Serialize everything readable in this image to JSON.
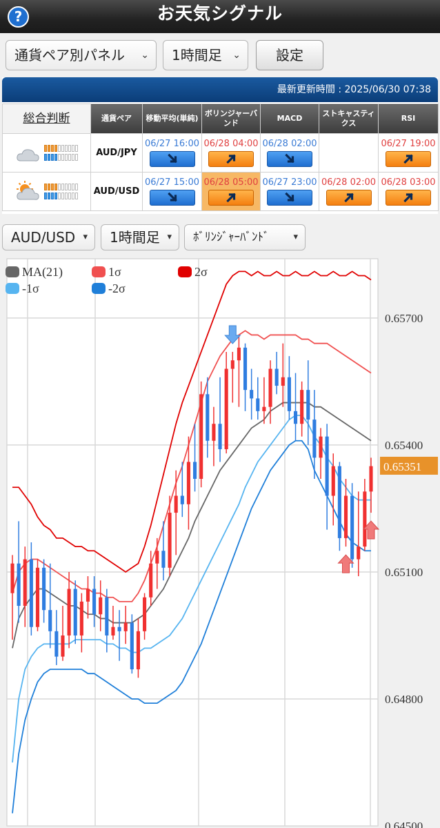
{
  "app": {
    "title": "お天気シグナル",
    "help_icon": "question-icon"
  },
  "controls": {
    "panel_select": "通貨ペア別パネル",
    "timeframe_select": "1時間足",
    "settings_button": "設定"
  },
  "panel": {
    "last_updated": "最新更新時間 : 2025/06/30 07:38",
    "headers": {
      "overall": "総合判断",
      "pair": "通貨ペア",
      "ma": "移動平均(単純)",
      "bollinger": "ボリンジャーバンド",
      "macd": "MACD",
      "stoch": "ストキャスティクス",
      "rsi": "RSI"
    },
    "rows": [
      {
        "weather_icon": "cloud-icon",
        "meter": {
          "orange": 4,
          "blue": 4,
          "total": 10
        },
        "pair": "AUD/JPY",
        "ma": {
          "time": "06/27 16:00",
          "dir": "down"
        },
        "bollinger": {
          "time": "06/28 04:00",
          "dir": "up"
        },
        "macd": {
          "time": "06/28 02:00",
          "dir": "down"
        },
        "stoch": {
          "time": "",
          "dir": ""
        },
        "rsi": {
          "time": "06/27 19:00",
          "dir": "up"
        }
      },
      {
        "weather_icon": "sun-cloud-icon",
        "meter": {
          "orange": 4,
          "blue": 4,
          "total": 10
        },
        "pair": "AUD/USD",
        "ma": {
          "time": "06/27 15:00",
          "dir": "down"
        },
        "bollinger": {
          "time": "06/28 05:00",
          "dir": "up",
          "highlight": true
        },
        "macd": {
          "time": "06/27 23:00",
          "dir": "down"
        },
        "stoch": {
          "time": "06/28 02:00",
          "dir": "up"
        },
        "rsi": {
          "time": "06/28 03:00",
          "dir": "up"
        }
      }
    ]
  },
  "chart_controls": {
    "pair_select": "AUD/USD",
    "timeframe_select": "1時間足",
    "indicator_select": "ﾎﾞﾘﾝｼﾞｬｰﾊﾞﾝﾄﾞ"
  },
  "chart_data": {
    "type": "candlestick",
    "ylim": [
      0.645,
      0.6584
    ],
    "y_ticks": [
      "0.65700",
      "0.65400",
      "0.65100",
      "0.64800",
      "0.64500"
    ],
    "current_price": "0.65351",
    "legend": [
      {
        "name": "MA(21)",
        "color": "#666666"
      },
      {
        "name": "1σ",
        "color": "#f05050"
      },
      {
        "name": "2σ",
        "color": "#e00000"
      },
      {
        "name": "-1σ",
        "color": "#56b4f0"
      },
      {
        "name": "-2σ",
        "color": "#1f7fd9"
      }
    ],
    "colors": {
      "up": "#f03030",
      "down": "#2f7de0"
    },
    "x_count": 58,
    "ohlc": [
      [
        0.6505,
        0.6514,
        0.6494,
        0.6512
      ],
      [
        0.6512,
        0.6522,
        0.6498,
        0.6502
      ],
      [
        0.6502,
        0.6516,
        0.6497,
        0.6513
      ],
      [
        0.6513,
        0.6517,
        0.6495,
        0.6497
      ],
      [
        0.6497,
        0.6513,
        0.6496,
        0.6511
      ],
      [
        0.6511,
        0.6513,
        0.6498,
        0.6501
      ],
      [
        0.6501,
        0.6512,
        0.6492,
        0.6496
      ],
      [
        0.6496,
        0.6501,
        0.6488,
        0.649
      ],
      [
        0.649,
        0.6502,
        0.6489,
        0.6495
      ],
      [
        0.6495,
        0.651,
        0.6492,
        0.6506
      ],
      [
        0.6506,
        0.6508,
        0.6493,
        0.6495
      ],
      [
        0.6495,
        0.6505,
        0.6491,
        0.6503
      ],
      [
        0.6503,
        0.6509,
        0.6499,
        0.6506
      ],
      [
        0.6506,
        0.6509,
        0.6497,
        0.65
      ],
      [
        0.65,
        0.6508,
        0.6496,
        0.6504
      ],
      [
        0.6504,
        0.6506,
        0.6491,
        0.6495
      ],
      [
        0.6495,
        0.6502,
        0.6494,
        0.6497
      ],
      [
        0.6497,
        0.6501,
        0.6489,
        0.6496
      ],
      [
        0.6496,
        0.6502,
        0.6493,
        0.6498
      ],
      [
        0.6498,
        0.65,
        0.6486,
        0.6487
      ],
      [
        0.6487,
        0.6499,
        0.6485,
        0.6496
      ],
      [
        0.6496,
        0.6505,
        0.6494,
        0.6504
      ],
      [
        0.6504,
        0.6515,
        0.6502,
        0.6512
      ],
      [
        0.6512,
        0.6518,
        0.6506,
        0.6515
      ],
      [
        0.6515,
        0.6522,
        0.6508,
        0.6511
      ],
      [
        0.6511,
        0.6528,
        0.6509,
        0.6524
      ],
      [
        0.6524,
        0.6534,
        0.6514,
        0.6528
      ],
      [
        0.6528,
        0.6536,
        0.6523,
        0.6526
      ],
      [
        0.6526,
        0.6542,
        0.652,
        0.6536
      ],
      [
        0.6536,
        0.6545,
        0.6529,
        0.6532
      ],
      [
        0.6532,
        0.6555,
        0.653,
        0.6552
      ],
      [
        0.6552,
        0.6556,
        0.6537,
        0.6541
      ],
      [
        0.6541,
        0.6549,
        0.6535,
        0.6545
      ],
      [
        0.6545,
        0.6556,
        0.6536,
        0.6539
      ],
      [
        0.6539,
        0.6562,
        0.6538,
        0.6558
      ],
      [
        0.6558,
        0.6562,
        0.655,
        0.656
      ],
      [
        0.656,
        0.6566,
        0.6549,
        0.6563
      ],
      [
        0.6563,
        0.6564,
        0.6548,
        0.6553
      ],
      [
        0.6553,
        0.6558,
        0.6546,
        0.6551
      ],
      [
        0.6551,
        0.6556,
        0.6546,
        0.6548
      ],
      [
        0.6548,
        0.6556,
        0.6545,
        0.6549
      ],
      [
        0.6549,
        0.656,
        0.6545,
        0.6558
      ],
      [
        0.6558,
        0.6562,
        0.6552,
        0.6554
      ],
      [
        0.6554,
        0.6564,
        0.6549,
        0.6556
      ],
      [
        0.6556,
        0.6561,
        0.6546,
        0.6548
      ],
      [
        0.6548,
        0.6557,
        0.6541,
        0.6545
      ],
      [
        0.6545,
        0.6555,
        0.6542,
        0.6553
      ],
      [
        0.6553,
        0.656,
        0.654,
        0.6546
      ],
      [
        0.6546,
        0.6553,
        0.6532,
        0.6537
      ],
      [
        0.6537,
        0.6544,
        0.6532,
        0.6542
      ],
      [
        0.6542,
        0.6545,
        0.652,
        0.6528
      ],
      [
        0.6528,
        0.6538,
        0.6521,
        0.6535
      ],
      [
        0.6535,
        0.6536,
        0.6515,
        0.6518
      ],
      [
        0.6518,
        0.6532,
        0.6516,
        0.6528
      ],
      [
        0.6528,
        0.6531,
        0.6511,
        0.6513
      ],
      [
        0.6513,
        0.6529,
        0.6509,
        0.6516
      ],
      [
        0.6516,
        0.6532,
        0.6515,
        0.6529
      ],
      [
        0.6529,
        0.6537,
        0.6524,
        0.6535
      ]
    ],
    "bands": {
      "ma": [
        0.6492,
        0.6499,
        0.6502,
        0.6504,
        0.6506,
        0.6506,
        0.6505,
        0.6504,
        0.6503,
        0.6502,
        0.6502,
        0.6501,
        0.65,
        0.65,
        0.6499,
        0.6499,
        0.6498,
        0.6498,
        0.6498,
        0.6498,
        0.6499,
        0.65,
        0.6502,
        0.6504,
        0.6506,
        0.6509,
        0.6512,
        0.6515,
        0.6518,
        0.6522,
        0.6525,
        0.6528,
        0.6531,
        0.6534,
        0.6536,
        0.6538,
        0.654,
        0.6542,
        0.6544,
        0.6545,
        0.6546,
        0.6548,
        0.6549,
        0.655,
        0.655,
        0.655,
        0.655,
        0.655,
        0.6549,
        0.6549,
        0.6548,
        0.6547,
        0.6546,
        0.6545,
        0.6544,
        0.6543,
        0.6542,
        0.6541
      ],
      "up1": [
        0.6505,
        0.651,
        0.6512,
        0.6513,
        0.6513,
        0.6512,
        0.6511,
        0.651,
        0.6509,
        0.6508,
        0.6507,
        0.6506,
        0.6506,
        0.6505,
        0.6505,
        0.6504,
        0.6504,
        0.6503,
        0.6503,
        0.6503,
        0.6505,
        0.6508,
        0.6512,
        0.6516,
        0.6521,
        0.6526,
        0.6531,
        0.6535,
        0.654,
        0.6545,
        0.655,
        0.6555,
        0.6558,
        0.6561,
        0.6563,
        0.6565,
        0.6566,
        0.6567,
        0.6566,
        0.6566,
        0.6565,
        0.6566,
        0.6566,
        0.6566,
        0.6566,
        0.6566,
        0.6565,
        0.6565,
        0.6564,
        0.6564,
        0.6564,
        0.6563,
        0.6562,
        0.6561,
        0.656,
        0.6559,
        0.6558,
        0.6557
      ],
      "up2": [
        0.653,
        0.653,
        0.6528,
        0.6526,
        0.6523,
        0.6521,
        0.652,
        0.6518,
        0.6518,
        0.6517,
        0.6516,
        0.6516,
        0.6515,
        0.6515,
        0.6514,
        0.6513,
        0.6512,
        0.6511,
        0.651,
        0.6511,
        0.6512,
        0.6516,
        0.6521,
        0.6527,
        0.6533,
        0.6539,
        0.6545,
        0.655,
        0.6554,
        0.6558,
        0.6562,
        0.6566,
        0.657,
        0.6574,
        0.6578,
        0.658,
        0.6581,
        0.6581,
        0.658,
        0.6581,
        0.658,
        0.658,
        0.6581,
        0.658,
        0.658,
        0.6581,
        0.658,
        0.658,
        0.6581,
        0.658,
        0.658,
        0.6581,
        0.658,
        0.658,
        0.6581,
        0.658,
        0.658,
        0.6579
      ],
      "dn1": [
        0.6465,
        0.648,
        0.6487,
        0.649,
        0.6492,
        0.6493,
        0.6493,
        0.6493,
        0.6493,
        0.6493,
        0.6494,
        0.6494,
        0.6494,
        0.6494,
        0.6494,
        0.6493,
        0.6493,
        0.6492,
        0.6492,
        0.6491,
        0.6491,
        0.6492,
        0.6492,
        0.6493,
        0.6494,
        0.6495,
        0.6497,
        0.6499,
        0.6502,
        0.6505,
        0.6508,
        0.6511,
        0.6514,
        0.6517,
        0.652,
        0.6523,
        0.6526,
        0.653,
        0.6533,
        0.6536,
        0.6538,
        0.654,
        0.6542,
        0.6544,
        0.6546,
        0.6547,
        0.6547,
        0.6545,
        0.6542,
        0.654,
        0.6537,
        0.6535,
        0.6532,
        0.653,
        0.6528,
        0.6527,
        0.6527,
        0.6527
      ],
      "dn2": [
        0.6453,
        0.6467,
        0.6475,
        0.648,
        0.6484,
        0.6486,
        0.6487,
        0.6487,
        0.6487,
        0.6487,
        0.6487,
        0.6487,
        0.6486,
        0.6486,
        0.6485,
        0.6484,
        0.6483,
        0.6482,
        0.6481,
        0.648,
        0.648,
        0.6479,
        0.6479,
        0.6479,
        0.648,
        0.6481,
        0.6482,
        0.6484,
        0.6487,
        0.649,
        0.6493,
        0.6497,
        0.6501,
        0.6505,
        0.6509,
        0.6513,
        0.6517,
        0.6521,
        0.6525,
        0.6528,
        0.6531,
        0.6534,
        0.6536,
        0.6538,
        0.654,
        0.6541,
        0.6541,
        0.6539,
        0.6534,
        0.6531,
        0.6528,
        0.6525,
        0.6522,
        0.6519,
        0.6517,
        0.6516,
        0.6515,
        0.6515
      ]
    },
    "signals": [
      {
        "index": 35,
        "dir": "down"
      },
      {
        "index": 53,
        "dir": "up"
      },
      {
        "index": 57,
        "dir": "up"
      }
    ]
  }
}
